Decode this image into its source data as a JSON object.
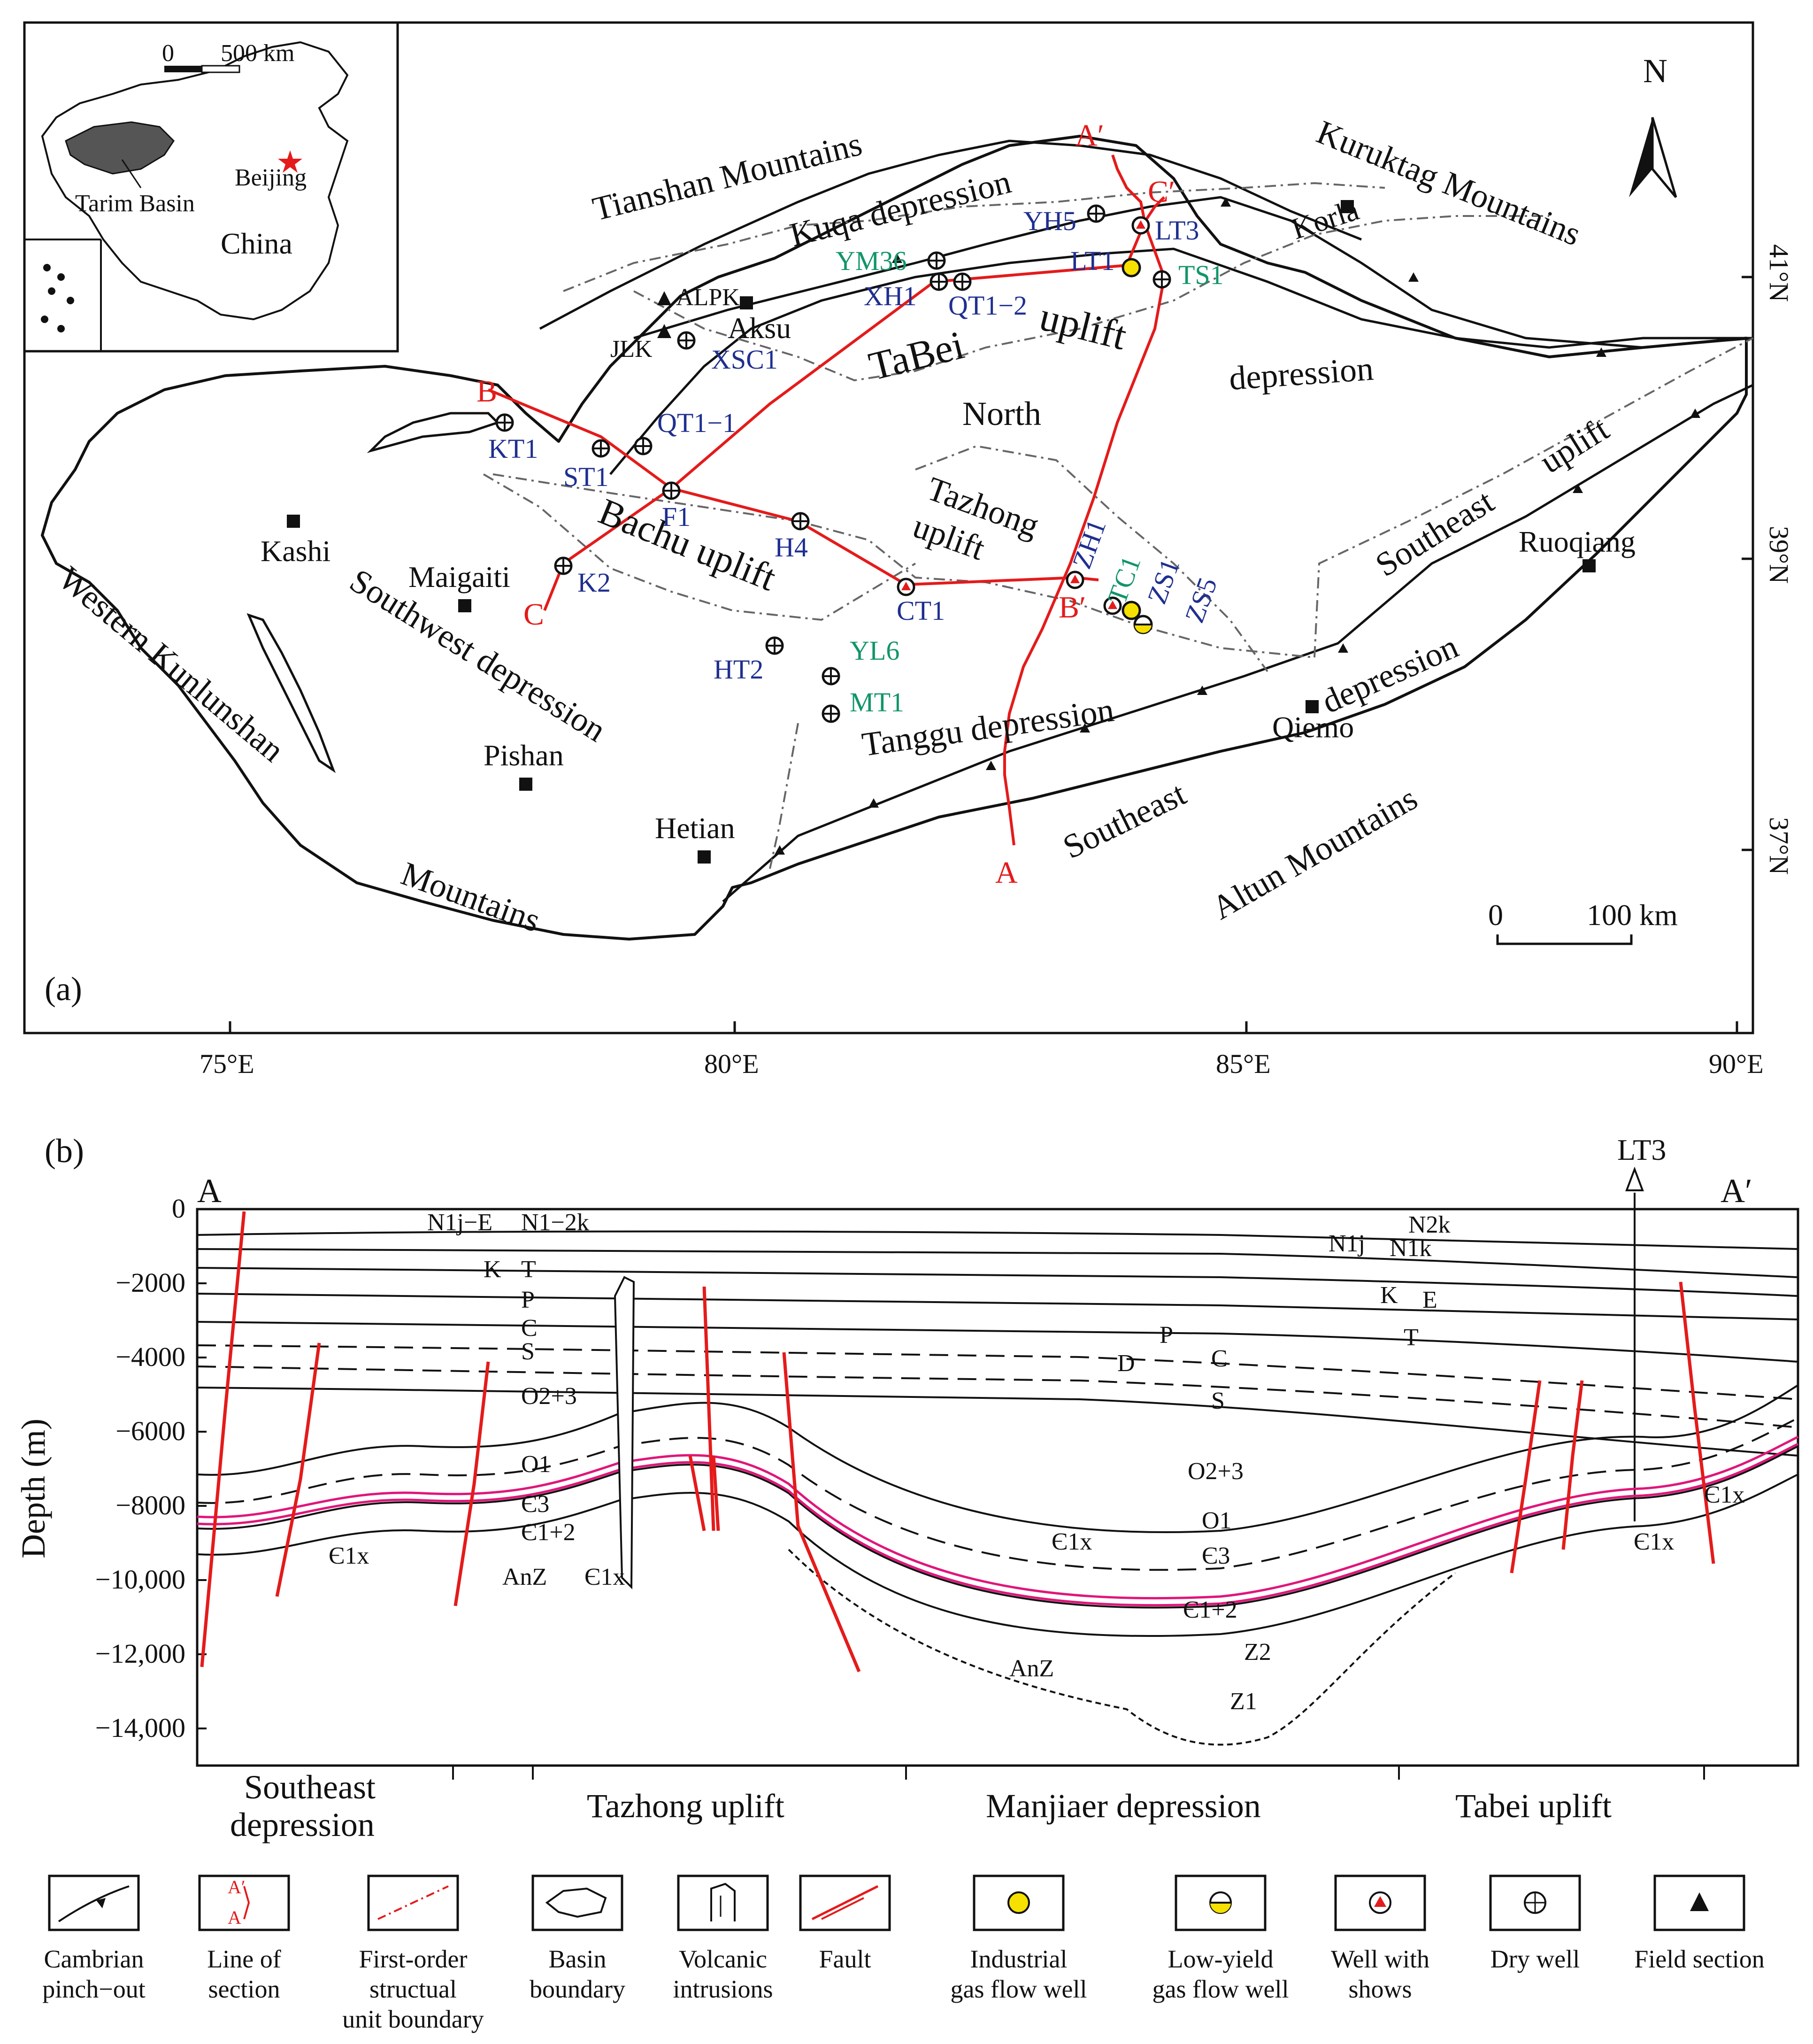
{
  "colors": {
    "section_line": "#e41b1b",
    "fault": "#e41b1b",
    "target_layer": "#e0167a",
    "well_blue": "#1f2f8f",
    "well_green": "#12956a",
    "industrial_gas": "#f6e000"
  },
  "panel_a": {
    "tag": "(a)",
    "north_label": "N",
    "inset": {
      "scale_zero": "0",
      "scale_label": "500 km",
      "tarim": "Tarim Basin",
      "beijing": "Beijing",
      "china": "China"
    },
    "scale_zero": "0",
    "scale_label": "100 km",
    "lon_labels": [
      "75°E",
      "80°E",
      "85°E",
      "90°E"
    ],
    "lat_labels": [
      "41°N",
      "39°N",
      "37°N"
    ],
    "mountains": {
      "tianshan": "Tianshan Mountains",
      "kuruktag": "Kuruktag Mountains",
      "kunlun": "Western Kunlunshan",
      "kunlun2": "Mountains",
      "altun": "Altun Mountains"
    },
    "units": {
      "kuqa": "Kuqa depression",
      "tabei_a": "TaBei",
      "tabei_b": "uplift",
      "north": "North",
      "depression": "depression",
      "bachu": "Bachu uplift",
      "tazhong_a": "Tazhong",
      "tazhong_b": "uplift",
      "southwest": "Southwest depression",
      "tanggu": "Tanggu depression",
      "southeast_uplift_a": "Southeast",
      "southeast_uplift_b": "uplift",
      "southeast_dep_a": "Southeast",
      "southeast_dep_b": "depression"
    },
    "cities": [
      "Kashi",
      "Maigaiti",
      "Pishan",
      "Hetian",
      "Aksu",
      "Korla",
      "Ruoqiang",
      "Qiemo"
    ],
    "section_letters": [
      "A",
      "A′",
      "B",
      "B′",
      "C",
      "C′"
    ],
    "wells_blue": [
      "KT1",
      "ST1",
      "QT1−1",
      "F1",
      "H4",
      "K2",
      "CT1",
      "HT2",
      "XH1",
      "QT1−2",
      "YH5",
      "LT1",
      "LT3",
      "ZH1",
      "ZS1",
      "ZS5",
      "XSC1"
    ],
    "wells_green": [
      "YM36",
      "TS1",
      "TC1",
      "YL6",
      "MT1"
    ],
    "field_sections": [
      "ALPK",
      "JLK"
    ]
  },
  "panel_b": {
    "tag": "(b)",
    "left_end": "A",
    "right_end": "A′",
    "well": "LT3",
    "y_axis_label": "Depth (m)",
    "y_ticks": [
      "0",
      "−2000",
      "−4000",
      "−6000",
      "−8000",
      "−10,000",
      "−12,000",
      "−14,000"
    ],
    "strata_left": [
      "N1j−E",
      "N1−2k",
      "K",
      "T",
      "P",
      "C",
      "S",
      "O2+3",
      "O1",
      "Є3",
      "Є1+2",
      "Є1x",
      "AnZ",
      "Є1x"
    ],
    "strata_center": [
      "P",
      "D",
      "C",
      "S",
      "O2+3",
      "O1",
      "Є1x",
      "Є3",
      "Є1+2",
      "Z2",
      "AnZ",
      "Z1"
    ],
    "strata_right": [
      "N2k",
      "N1j",
      "N1k",
      "K",
      "E",
      "T",
      "Є1x",
      "Є1x"
    ],
    "regions": [
      "Southeast",
      "depression",
      "Tazhong uplift",
      "Manjiaer depression",
      "Tabei uplift"
    ]
  },
  "legend": [
    {
      "icon": "cambrian-pinchout-icon",
      "lines": [
        "Cambrian",
        "pinch−out"
      ]
    },
    {
      "icon": "section-line-icon",
      "lines": [
        "Line of",
        "section"
      ],
      "glyph_top": "A′",
      "glyph_bot": "A"
    },
    {
      "icon": "unit-boundary-icon",
      "lines": [
        "First-order",
        "structual",
        "unit boundary"
      ]
    },
    {
      "icon": "basin-boundary-icon",
      "lines": [
        "Basin",
        "boundary"
      ]
    },
    {
      "icon": "volcanic-intrusion-icon",
      "lines": [
        "Volcanic",
        "intrusions"
      ]
    },
    {
      "icon": "fault-icon",
      "lines": [
        "Fault"
      ]
    },
    {
      "icon": "industrial-gas-well-icon",
      "lines": [
        "Industrial",
        "gas flow well"
      ]
    },
    {
      "icon": "low-yield-gas-well-icon",
      "lines": [
        "Low-yield",
        "gas flow well"
      ]
    },
    {
      "icon": "well-with-shows-icon",
      "lines": [
        "Well with",
        "shows"
      ]
    },
    {
      "icon": "dry-well-icon",
      "lines": [
        "Dry  well"
      ]
    },
    {
      "icon": "field-section-icon",
      "lines": [
        "Field section"
      ]
    }
  ]
}
